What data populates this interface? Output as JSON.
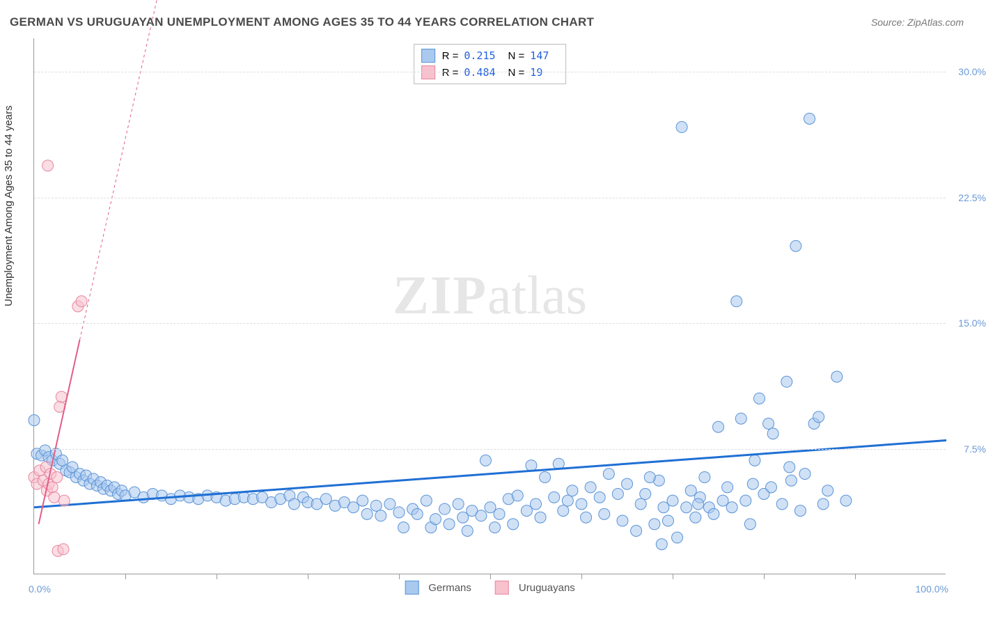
{
  "title": "GERMAN VS URUGUAYAN UNEMPLOYMENT AMONG AGES 35 TO 44 YEARS CORRELATION CHART",
  "source": "Source: ZipAtlas.com",
  "y_axis_label": "Unemployment Among Ages 35 to 44 years",
  "watermark_a": "ZIP",
  "watermark_b": "atlas",
  "chart": {
    "type": "scatter",
    "xlim": [
      0,
      100
    ],
    "ylim": [
      0,
      32
    ],
    "x_label_min": "0.0%",
    "x_label_max": "100.0%",
    "yticks": [
      7.5,
      15.0,
      22.5,
      30.0
    ],
    "ytick_labels": [
      "7.5%",
      "15.0%",
      "22.5%",
      "30.0%"
    ],
    "xtick_positions": [
      10,
      20,
      30,
      40,
      50,
      60,
      70,
      80,
      90
    ],
    "background_color": "#ffffff",
    "grid_color": "#dddddd",
    "axis_color": "#999999",
    "tick_label_color": "#6b99d6",
    "marker_radius": 8,
    "marker_opacity": 0.55,
    "series": [
      {
        "name": "Germans",
        "color_fill": "#a9c9ef",
        "color_stroke": "#5a93d6",
        "trend_color": "#1f6fd4",
        "trend_width": 3,
        "trend": {
          "x1": 0,
          "y1": 4.0,
          "x2": 100,
          "y2": 8.0
        },
        "R": "0.215",
        "N": "147",
        "points": [
          [
            0.0,
            9.2
          ],
          [
            0.3,
            7.2
          ],
          [
            0.8,
            7.1
          ],
          [
            1.2,
            7.4
          ],
          [
            1.6,
            7.0
          ],
          [
            2.0,
            6.8
          ],
          [
            2.4,
            7.2
          ],
          [
            2.8,
            6.6
          ],
          [
            3.1,
            6.8
          ],
          [
            3.5,
            6.2
          ],
          [
            3.9,
            6.1
          ],
          [
            4.2,
            6.4
          ],
          [
            4.6,
            5.8
          ],
          [
            5.0,
            6.0
          ],
          [
            5.4,
            5.6
          ],
          [
            5.7,
            5.9
          ],
          [
            6.1,
            5.4
          ],
          [
            6.5,
            5.7
          ],
          [
            6.9,
            5.3
          ],
          [
            7.3,
            5.5
          ],
          [
            7.6,
            5.1
          ],
          [
            8.0,
            5.3
          ],
          [
            8.4,
            5.0
          ],
          [
            8.8,
            5.2
          ],
          [
            9.2,
            4.8
          ],
          [
            9.6,
            5.0
          ],
          [
            10.0,
            4.7
          ],
          [
            11.0,
            4.9
          ],
          [
            12.0,
            4.6
          ],
          [
            13.0,
            4.8
          ],
          [
            14.0,
            4.7
          ],
          [
            15.0,
            4.5
          ],
          [
            16.0,
            4.7
          ],
          [
            17.0,
            4.6
          ],
          [
            18.0,
            4.5
          ],
          [
            19.0,
            4.7
          ],
          [
            20.0,
            4.6
          ],
          [
            21.0,
            4.4
          ],
          [
            22.0,
            4.5
          ],
          [
            23.0,
            4.6
          ],
          [
            24.0,
            4.5
          ],
          [
            25.0,
            4.6
          ],
          [
            26.0,
            4.3
          ],
          [
            27.0,
            4.5
          ],
          [
            28.0,
            4.7
          ],
          [
            28.5,
            4.2
          ],
          [
            29.5,
            4.6
          ],
          [
            30.0,
            4.3
          ],
          [
            31.0,
            4.2
          ],
          [
            32.0,
            4.5
          ],
          [
            33.0,
            4.1
          ],
          [
            34.0,
            4.3
          ],
          [
            35.0,
            4.0
          ],
          [
            36.0,
            4.4
          ],
          [
            36.5,
            3.6
          ],
          [
            37.5,
            4.1
          ],
          [
            38.0,
            3.5
          ],
          [
            39.0,
            4.2
          ],
          [
            40.0,
            3.7
          ],
          [
            40.5,
            2.8
          ],
          [
            41.5,
            3.9
          ],
          [
            42.0,
            3.6
          ],
          [
            43.0,
            4.4
          ],
          [
            43.5,
            2.8
          ],
          [
            44.0,
            3.3
          ],
          [
            45.0,
            3.9
          ],
          [
            45.5,
            3.0
          ],
          [
            46.5,
            4.2
          ],
          [
            47.0,
            3.4
          ],
          [
            47.5,
            2.6
          ],
          [
            48.0,
            3.8
          ],
          [
            49.0,
            3.5
          ],
          [
            49.5,
            6.8
          ],
          [
            50.0,
            4.0
          ],
          [
            50.5,
            2.8
          ],
          [
            51.0,
            3.6
          ],
          [
            52.0,
            4.5
          ],
          [
            52.5,
            3.0
          ],
          [
            53.0,
            4.7
          ],
          [
            54.0,
            3.8
          ],
          [
            54.5,
            6.5
          ],
          [
            55.0,
            4.2
          ],
          [
            55.5,
            3.4
          ],
          [
            56.0,
            5.8
          ],
          [
            57.0,
            4.6
          ],
          [
            57.5,
            6.6
          ],
          [
            58.0,
            3.8
          ],
          [
            58.5,
            4.4
          ],
          [
            59.0,
            5.0
          ],
          [
            60.0,
            4.2
          ],
          [
            60.5,
            3.4
          ],
          [
            61.0,
            5.2
          ],
          [
            62.0,
            4.6
          ],
          [
            62.5,
            3.6
          ],
          [
            63.0,
            6.0
          ],
          [
            64.0,
            4.8
          ],
          [
            64.5,
            3.2
          ],
          [
            65.0,
            5.4
          ],
          [
            66.0,
            2.6
          ],
          [
            66.5,
            4.2
          ],
          [
            67.0,
            4.8
          ],
          [
            68.0,
            3.0
          ],
          [
            68.5,
            5.6
          ],
          [
            69.0,
            4.0
          ],
          [
            70.0,
            4.4
          ],
          [
            71.0,
            26.7
          ],
          [
            72.0,
            5.0
          ],
          [
            72.5,
            3.4
          ],
          [
            73.0,
            4.6
          ],
          [
            74.0,
            4.0
          ],
          [
            75.0,
            8.8
          ],
          [
            76.0,
            5.2
          ],
          [
            77.0,
            16.3
          ],
          [
            77.5,
            9.3
          ],
          [
            78.0,
            4.4
          ],
          [
            78.5,
            3.0
          ],
          [
            79.0,
            6.8
          ],
          [
            79.5,
            10.5
          ],
          [
            80.0,
            4.8
          ],
          [
            80.5,
            9.0
          ],
          [
            81.0,
            8.4
          ],
          [
            82.0,
            4.2
          ],
          [
            82.5,
            11.5
          ],
          [
            83.0,
            5.6
          ],
          [
            83.5,
            19.6
          ],
          [
            84.0,
            3.8
          ],
          [
            85.0,
            27.2
          ],
          [
            85.5,
            9.0
          ],
          [
            86.0,
            9.4
          ],
          [
            87.0,
            5.0
          ],
          [
            88.0,
            11.8
          ],
          [
            89.0,
            4.4
          ],
          [
            70.5,
            2.2
          ],
          [
            71.5,
            4.0
          ],
          [
            73.5,
            5.8
          ],
          [
            74.5,
            3.6
          ],
          [
            76.5,
            4.0
          ],
          [
            78.8,
            5.4
          ],
          [
            80.8,
            5.2
          ],
          [
            82.8,
            6.4
          ],
          [
            84.5,
            6.0
          ],
          [
            86.5,
            4.2
          ],
          [
            67.5,
            5.8
          ],
          [
            69.5,
            3.2
          ],
          [
            72.8,
            4.2
          ],
          [
            75.5,
            4.4
          ],
          [
            68.8,
            1.8
          ]
        ]
      },
      {
        "name": "Uruguayans",
        "color_fill": "#f7c1cd",
        "color_stroke": "#e787a0",
        "trend_color": "#e35d85",
        "trend_width": 2,
        "trend": {
          "x1": 0.5,
          "y1": 3.0,
          "x2": 5.0,
          "y2": 14.0
        },
        "trend_dash": {
          "x1": 5.0,
          "y1": 14.0,
          "x2": 15.0,
          "y2": 38.0
        },
        "R": "0.484",
        "N": "19",
        "points": [
          [
            0.0,
            5.8
          ],
          [
            0.3,
            5.4
          ],
          [
            0.6,
            6.2
          ],
          [
            1.0,
            5.6
          ],
          [
            1.3,
            6.4
          ],
          [
            1.4,
            5.0
          ],
          [
            1.6,
            5.4
          ],
          [
            1.8,
            6.0
          ],
          [
            2.0,
            5.2
          ],
          [
            2.2,
            4.6
          ],
          [
            2.8,
            10.0
          ],
          [
            3.0,
            10.6
          ],
          [
            3.3,
            4.4
          ],
          [
            2.5,
            5.8
          ],
          [
            4.8,
            16.0
          ],
          [
            5.2,
            16.3
          ],
          [
            1.5,
            24.4
          ],
          [
            2.6,
            1.4
          ],
          [
            3.2,
            1.5
          ]
        ]
      }
    ]
  },
  "legend_top": {
    "rows": [
      {
        "swatch_fill": "#a9c9ef",
        "swatch_stroke": "#5a93d6",
        "r_label": "R =",
        "r_val": "0.215",
        "n_label": "N =",
        "n_val": "147"
      },
      {
        "swatch_fill": "#f7c1cd",
        "swatch_stroke": "#e787a0",
        "r_label": "R =",
        "r_val": "0.484",
        "n_label": "N =",
        "n_val": " 19"
      }
    ]
  },
  "legend_bottom": {
    "items": [
      {
        "swatch_fill": "#a9c9ef",
        "swatch_stroke": "#5a93d6",
        "label": "Germans"
      },
      {
        "swatch_fill": "#f7c1cd",
        "swatch_stroke": "#e787a0",
        "label": "Uruguayans"
      }
    ]
  }
}
